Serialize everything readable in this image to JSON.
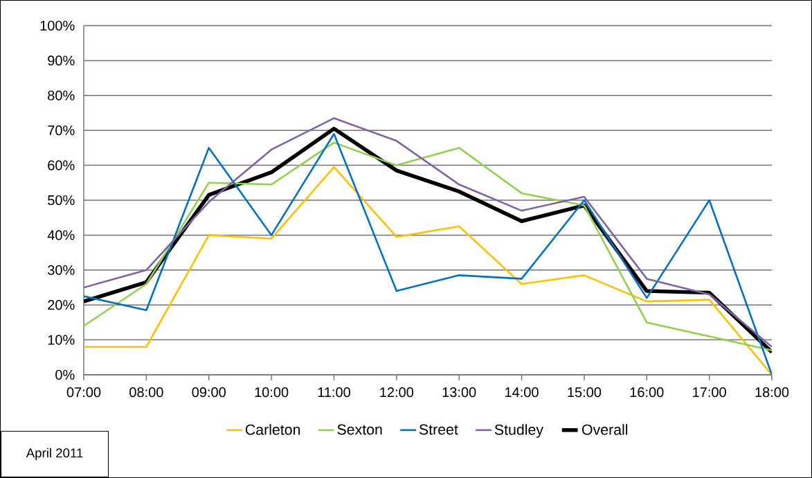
{
  "chart_data": {
    "type": "line",
    "categories": [
      "07:00",
      "08:00",
      "09:00",
      "10:00",
      "11:00",
      "12:00",
      "13:00",
      "14:00",
      "15:00",
      "16:00",
      "17:00",
      "18:00"
    ],
    "series": [
      {
        "name": "Carleton",
        "color": "#ffc000",
        "values": [
          8,
          8,
          40,
          39,
          59.5,
          39.5,
          42.5,
          26,
          28.5,
          21,
          21.5,
          0
        ]
      },
      {
        "name": "Sexton",
        "color": "#92d050",
        "values": [
          14,
          26,
          55,
          54.5,
          66.5,
          60,
          65,
          52,
          48.5,
          15,
          11,
          7
        ]
      },
      {
        "name": "Street",
        "color": "#0070c0",
        "values": [
          22.5,
          18.5,
          65,
          40,
          69,
          24,
          28.5,
          27.5,
          50,
          22,
          50,
          0
        ]
      },
      {
        "name": "Studley",
        "color": "#8064a2",
        "values": [
          25,
          30,
          49.5,
          64.5,
          73.5,
          67,
          54.5,
          47,
          51,
          27.5,
          23,
          8
        ]
      },
      {
        "name": "Overall",
        "color": "#000000",
        "values": [
          21,
          26.5,
          51.5,
          58,
          70.5,
          58.5,
          52.5,
          44,
          48.5,
          24,
          23.5,
          6.5
        ]
      }
    ],
    "ylim": [
      0,
      100
    ],
    "yticks": [
      {
        "value": 0,
        "label": "0%"
      },
      {
        "value": 10,
        "label": "10%"
      },
      {
        "value": 20,
        "label": "20%"
      },
      {
        "value": 30,
        "label": "30%"
      },
      {
        "value": 40,
        "label": "40%"
      },
      {
        "value": 50,
        "label": "50%"
      },
      {
        "value": 60,
        "label": "60%"
      },
      {
        "value": 70,
        "label": "70%"
      },
      {
        "value": 80,
        "label": "80%"
      },
      {
        "value": 90,
        "label": "90%"
      },
      {
        "value": 100,
        "label": "100%"
      }
    ],
    "grid": "y",
    "legend": "bottom",
    "marker": "none",
    "line_style": "solid",
    "annotations": [
      "April 2011"
    ]
  }
}
